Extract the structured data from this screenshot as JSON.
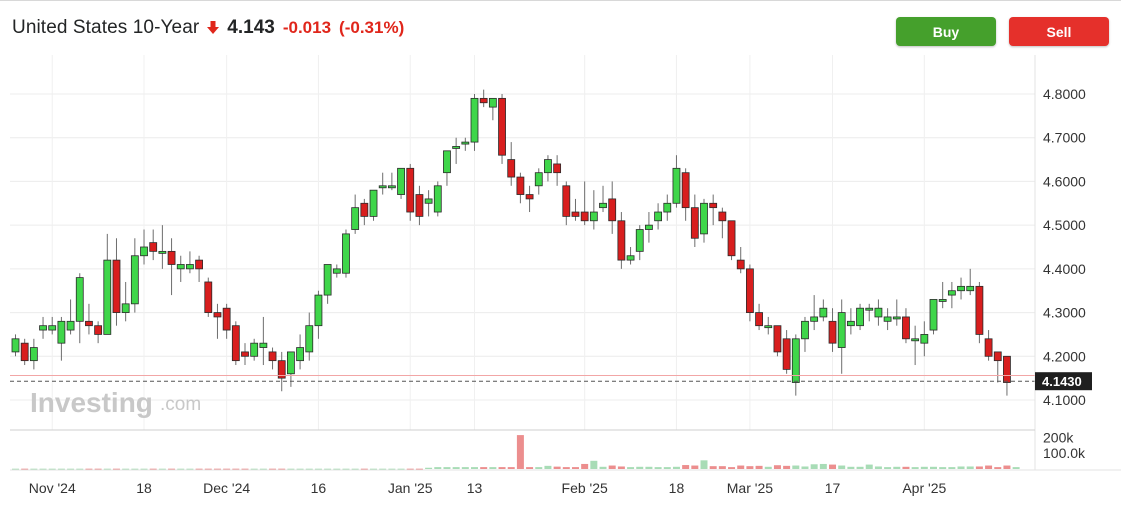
{
  "header": {
    "title": "United States 10-Year",
    "price": "4.143",
    "change": "-0.013",
    "change_pct": "(-0.31%)",
    "direction_icon": "arrow-down-icon"
  },
  "buttons": {
    "buy": "Buy",
    "sell": "Sell"
  },
  "watermark": {
    "brand": "Investing",
    "suffix": ".com"
  },
  "colors": {
    "up": "#3fd64a",
    "down": "#d81e1e",
    "vol_up": "#a8dcb6",
    "vol_down": "#ec8e8e",
    "buy": "#45a02c",
    "sell": "#e5302b"
  },
  "chart_data": {
    "type": "candlestick",
    "price_axis": {
      "ylim": [
        4.07,
        4.83
      ],
      "ticks": [
        "4.8000",
        "4.7000",
        "4.6000",
        "4.5000",
        "4.4000",
        "4.3000",
        "4.2000",
        "4.1000"
      ],
      "tick_values": [
        4.8,
        4.7,
        4.6,
        4.5,
        4.4,
        4.3,
        4.2,
        4.1
      ]
    },
    "volume_axis": {
      "ylim": [
        0,
        260000
      ],
      "ticks": [
        "200k",
        "100.0k"
      ],
      "tick_values": [
        200000,
        100000
      ]
    },
    "current_price_label": "4.1430",
    "current_price": 4.143,
    "previous_close": 4.156,
    "x_labels": [
      {
        "text": "Nov '24",
        "index": 4
      },
      {
        "text": "18",
        "index": 14
      },
      {
        "text": "Dec '24",
        "index": 23
      },
      {
        "text": "16",
        "index": 33
      },
      {
        "text": "Jan '25",
        "index": 43
      },
      {
        "text": "13",
        "index": 50
      },
      {
        "text": "Feb '25",
        "index": 62
      },
      {
        "text": "18",
        "index": 72
      },
      {
        "text": "Mar '25",
        "index": 80
      },
      {
        "text": "17",
        "index": 89
      },
      {
        "text": "Apr '25",
        "index": 99
      }
    ],
    "candles": [
      [
        4.21,
        4.24,
        4.25,
        4.2
      ],
      [
        4.23,
        4.19,
        4.24,
        4.18
      ],
      [
        4.19,
        4.22,
        4.24,
        4.17
      ],
      [
        4.26,
        4.27,
        4.29,
        4.24
      ],
      [
        4.26,
        4.27,
        4.29,
        4.25
      ],
      [
        4.23,
        4.28,
        4.29,
        4.19
      ],
      [
        4.26,
        4.28,
        4.33,
        4.25
      ],
      [
        4.28,
        4.38,
        4.39,
        4.23
      ],
      [
        4.28,
        4.27,
        4.32,
        4.25
      ],
      [
        4.27,
        4.25,
        4.28,
        4.23
      ],
      [
        4.25,
        4.42,
        4.48,
        4.25
      ],
      [
        4.42,
        4.3,
        4.47,
        4.27
      ],
      [
        4.3,
        4.32,
        4.37,
        4.28
      ],
      [
        4.32,
        4.43,
        4.47,
        4.3
      ],
      [
        4.43,
        4.45,
        4.49,
        4.41
      ],
      [
        4.46,
        4.44,
        4.49,
        4.42
      ],
      [
        4.44,
        4.44,
        4.5,
        4.4
      ],
      [
        4.44,
        4.41,
        4.47,
        4.34
      ],
      [
        4.4,
        4.41,
        4.43,
        4.37
      ],
      [
        4.4,
        4.41,
        4.44,
        4.39
      ],
      [
        4.42,
        4.4,
        4.43,
        4.37
      ],
      [
        4.37,
        4.3,
        4.38,
        4.29
      ],
      [
        4.3,
        4.29,
        4.32,
        4.24
      ],
      [
        4.31,
        4.26,
        4.32,
        4.24
      ],
      [
        4.27,
        4.19,
        4.28,
        4.18
      ],
      [
        4.21,
        4.2,
        4.23,
        4.18
      ],
      [
        4.2,
        4.23,
        4.24,
        4.19
      ],
      [
        4.22,
        4.23,
        4.29,
        4.18
      ],
      [
        4.21,
        4.19,
        4.22,
        4.17
      ],
      [
        4.19,
        4.15,
        4.21,
        4.12
      ],
      [
        4.16,
        4.21,
        4.21,
        4.13
      ],
      [
        4.19,
        4.22,
        4.25,
        4.17
      ],
      [
        4.21,
        4.27,
        4.3,
        4.19
      ],
      [
        4.27,
        4.34,
        4.35,
        4.24
      ],
      [
        4.34,
        4.41,
        4.41,
        4.32
      ],
      [
        4.39,
        4.4,
        4.41,
        4.38
      ],
      [
        4.39,
        4.48,
        4.49,
        4.38
      ],
      [
        4.49,
        4.54,
        4.57,
        4.48
      ],
      [
        4.55,
        4.52,
        4.56,
        4.5
      ],
      [
        4.52,
        4.58,
        4.58,
        4.51
      ],
      [
        4.59,
        4.59,
        4.62,
        4.57
      ],
      [
        4.59,
        4.59,
        4.62,
        4.58
      ],
      [
        4.57,
        4.63,
        4.63,
        4.56
      ],
      [
        4.63,
        4.53,
        4.64,
        4.51
      ],
      [
        4.57,
        4.52,
        4.59,
        4.5
      ],
      [
        4.55,
        4.56,
        4.58,
        4.52
      ],
      [
        4.53,
        4.59,
        4.6,
        4.52
      ],
      [
        4.62,
        4.67,
        4.67,
        4.59
      ],
      [
        4.68,
        4.68,
        4.7,
        4.64
      ],
      [
        4.69,
        4.69,
        4.7,
        4.67
      ],
      [
        4.69,
        4.79,
        4.8,
        4.67
      ],
      [
        4.79,
        4.78,
        4.81,
        4.77
      ],
      [
        4.77,
        4.79,
        4.79,
        4.74
      ],
      [
        4.79,
        4.66,
        4.8,
        4.64
      ],
      [
        4.65,
        4.61,
        4.69,
        4.59
      ],
      [
        4.61,
        4.57,
        4.62,
        4.55
      ],
      [
        4.57,
        4.56,
        4.59,
        4.53
      ],
      [
        4.59,
        4.62,
        4.63,
        4.57
      ],
      [
        4.62,
        4.65,
        4.66,
        4.6
      ],
      [
        4.64,
        4.62,
        4.66,
        4.59
      ],
      [
        4.59,
        4.52,
        4.6,
        4.5
      ],
      [
        4.53,
        4.52,
        4.56,
        4.51
      ],
      [
        4.53,
        4.51,
        4.6,
        4.5
      ],
      [
        4.51,
        4.53,
        4.58,
        4.49
      ],
      [
        4.54,
        4.55,
        4.59,
        4.53
      ],
      [
        4.56,
        4.51,
        4.6,
        4.48
      ],
      [
        4.51,
        4.42,
        4.53,
        4.4
      ],
      [
        4.42,
        4.43,
        4.45,
        4.41
      ],
      [
        4.44,
        4.49,
        4.5,
        4.42
      ],
      [
        4.49,
        4.5,
        4.53,
        4.46
      ],
      [
        4.51,
        4.53,
        4.55,
        4.49
      ],
      [
        4.53,
        4.55,
        4.57,
        4.51
      ],
      [
        4.55,
        4.63,
        4.66,
        4.54
      ],
      [
        4.62,
        4.54,
        4.63,
        4.51
      ],
      [
        4.54,
        4.47,
        4.57,
        4.45
      ],
      [
        4.48,
        4.55,
        4.56,
        4.46
      ],
      [
        4.55,
        4.54,
        4.57,
        4.5
      ],
      [
        4.53,
        4.51,
        4.54,
        4.47
      ],
      [
        4.51,
        4.43,
        4.51,
        4.42
      ],
      [
        4.42,
        4.4,
        4.45,
        4.39
      ],
      [
        4.4,
        4.3,
        4.41,
        4.28
      ],
      [
        4.3,
        4.27,
        4.32,
        4.26
      ],
      [
        4.27,
        4.27,
        4.29,
        4.25
      ],
      [
        4.27,
        4.21,
        4.27,
        4.2
      ],
      [
        4.24,
        4.17,
        4.26,
        4.16
      ],
      [
        4.14,
        4.24,
        4.25,
        4.11
      ],
      [
        4.24,
        4.28,
        4.29,
        4.21
      ],
      [
        4.28,
        4.29,
        4.34,
        4.26
      ],
      [
        4.29,
        4.31,
        4.33,
        4.28
      ],
      [
        4.28,
        4.23,
        4.31,
        4.21
      ],
      [
        4.22,
        4.3,
        4.33,
        4.16
      ],
      [
        4.27,
        4.28,
        4.31,
        4.25
      ],
      [
        4.27,
        4.31,
        4.32,
        4.26
      ],
      [
        4.31,
        4.31,
        4.32,
        4.28
      ],
      [
        4.29,
        4.31,
        4.33,
        4.27
      ],
      [
        4.28,
        4.29,
        4.31,
        4.26
      ],
      [
        4.29,
        4.29,
        4.33,
        4.27
      ],
      [
        4.29,
        4.24,
        4.31,
        4.23
      ],
      [
        4.24,
        4.24,
        4.27,
        4.18
      ],
      [
        4.23,
        4.25,
        4.28,
        4.2
      ],
      [
        4.26,
        4.33,
        4.33,
        4.25
      ],
      [
        4.33,
        4.33,
        4.37,
        4.31
      ],
      [
        4.34,
        4.35,
        4.37,
        4.31
      ],
      [
        4.35,
        4.36,
        4.38,
        4.33
      ],
      [
        4.35,
        4.36,
        4.4,
        4.34
      ],
      [
        4.36,
        4.25,
        4.37,
        4.23
      ],
      [
        4.24,
        4.2,
        4.26,
        4.19
      ],
      [
        4.21,
        4.19,
        4.21,
        4.14
      ],
      [
        4.2,
        4.14,
        4.2,
        4.11
      ]
    ],
    "volume": [
      2000,
      2000,
      2000,
      2000,
      2000,
      2000,
      2000,
      2000,
      2000,
      2000,
      2000,
      2000,
      2000,
      2000,
      2000,
      2000,
      2000,
      2000,
      2000,
      2000,
      2000,
      2000,
      2000,
      2000,
      2000,
      2000,
      2000,
      2000,
      2000,
      2000,
      2000,
      2000,
      2000,
      2000,
      2000,
      2000,
      2000,
      2000,
      2000,
      2000,
      2000,
      2000,
      2000,
      2000,
      2000,
      8000,
      12000,
      12000,
      12000,
      12000,
      12000,
      12000,
      12000,
      12000,
      12000,
      215000,
      12000,
      12000,
      20000,
      15000,
      12000,
      12000,
      32000,
      52000,
      14000,
      22000,
      16000,
      12000,
      14000,
      14000,
      12000,
      12000,
      14000,
      25000,
      22000,
      55000,
      18000,
      18000,
      12000,
      22000,
      18000,
      20000,
      14000,
      24000,
      20000,
      22000,
      16000,
      30000,
      32000,
      28000,
      22000,
      14000,
      14000,
      28000,
      16000,
      12000,
      14000,
      14000,
      12000,
      14000,
      14000,
      12000,
      12000,
      16000,
      16000,
      16000,
      22000,
      12000,
      22000,
      12000
    ]
  }
}
